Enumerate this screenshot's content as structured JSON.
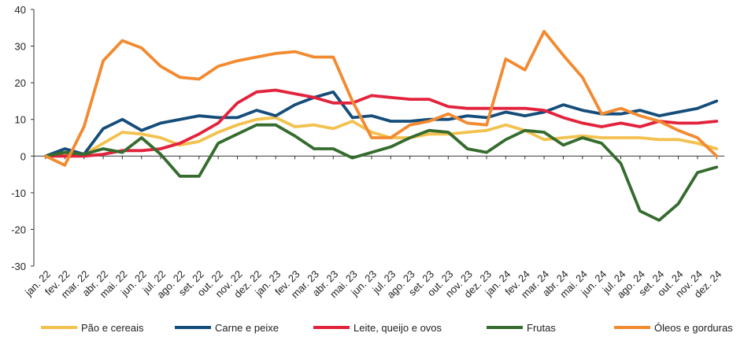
{
  "chart_data": {
    "type": "line",
    "title": "",
    "xlabel": "",
    "ylabel": "",
    "ylim": [
      -30,
      40
    ],
    "yticks": [
      40,
      30,
      20,
      10,
      0,
      -10,
      -20,
      -30
    ],
    "ytick_labels": [
      "40",
      "30",
      "20",
      "10",
      "0",
      "-10",
      "-20",
      "-30"
    ],
    "grid": false,
    "legend_position": "bottom",
    "categories": [
      "jan. 22",
      "fev. 22",
      "mar. 22",
      "abr. 22",
      "mai. 22",
      "jun. 22",
      "jul. 22",
      "ago. 22",
      "set. 22",
      "out. 22",
      "nov. 22",
      "dez. 22",
      "jan. 23",
      "fev. 23",
      "mar. 23",
      "abr. 23",
      "mai. 23",
      "jun. 23",
      "jul. 23",
      "ago. 23",
      "set. 23",
      "out. 23",
      "nov. 23",
      "dez. 23",
      "jan. 24",
      "fev. 24",
      "mar. 24",
      "abr. 24",
      "mai. 24",
      "jun. 24",
      "jul. 24",
      "ago. 24",
      "set. 24",
      "out. 24",
      "nov. 24",
      "dez. 24"
    ],
    "series": [
      {
        "name": "Pão e cereais",
        "color": "#F2C14E",
        "values": [
          0,
          0.5,
          0.5,
          3.5,
          6.5,
          6,
          5,
          3,
          4,
          6.5,
          8.5,
          10,
          10.5,
          8,
          8.5,
          7.5,
          9.5,
          6.5,
          5,
          5,
          6,
          6,
          6.5,
          7,
          8.5,
          7,
          4.5,
          5,
          5.5,
          5,
          5,
          5,
          4.5,
          4.5,
          3.5,
          2
        ]
      },
      {
        "name": "Carne e peixe",
        "color": "#154D7A",
        "values": [
          0,
          2,
          0.5,
          7.5,
          10,
          7,
          9,
          10,
          11,
          10.5,
          10.5,
          12.5,
          11,
          14,
          16,
          17.5,
          10.5,
          11,
          9.5,
          9.5,
          10,
          10,
          11,
          10.5,
          12,
          11,
          12,
          14,
          12.5,
          11.5,
          11.5,
          12.5,
          11,
          12,
          13,
          15
        ]
      },
      {
        "name": "Leite, queijo e ovos",
        "color": "#E3223C",
        "values": [
          0,
          0,
          0,
          0.5,
          1.5,
          1.5,
          2,
          3.5,
          6,
          9,
          14.5,
          17.5,
          18,
          17,
          16,
          14.5,
          14.5,
          16.5,
          16,
          15.5,
          15.5,
          13.5,
          13,
          13,
          13,
          13,
          12.5,
          10.5,
          9,
          8,
          9,
          8,
          9.5,
          9,
          9,
          9.5
        ]
      },
      {
        "name": "Frutas",
        "color": "#356C2E",
        "values": [
          0,
          1,
          0.5,
          2,
          1,
          5,
          0.5,
          -5.5,
          -5.5,
          3.5,
          6,
          8.5,
          8.5,
          5.5,
          2,
          2,
          -0.5,
          1,
          2.5,
          5,
          7,
          6.5,
          2,
          1,
          4.5,
          7,
          6.5,
          3,
          5,
          3.5,
          -2,
          -15,
          -17.5,
          -13,
          -4.5,
          -3
        ]
      },
      {
        "name": "Óleos e gorduras",
        "color": "#F28A30",
        "values": [
          0,
          -2.5,
          8,
          26,
          31.5,
          29.5,
          24.5,
          21.5,
          21,
          24.5,
          26,
          27,
          28,
          28.5,
          27,
          27,
          15,
          5,
          5,
          8.5,
          9.5,
          11.5,
          9,
          8.5,
          26.5,
          23.5,
          34,
          27.5,
          21.5,
          11.5,
          13,
          11,
          9.5,
          7,
          5,
          0
        ]
      }
    ]
  }
}
